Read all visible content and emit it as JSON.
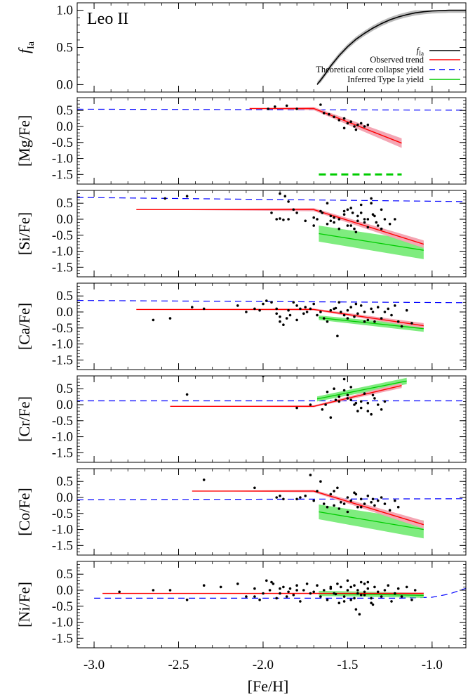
{
  "chart_data": {
    "type": "line",
    "title": "Leo II",
    "xlabel": "[Fe/H]",
    "xlim": [
      -3.1,
      -0.8
    ],
    "x_ticks": [
      "-3.0",
      "-2.5",
      "-2.0",
      "-1.5",
      "-1.0"
    ],
    "x_tick_values": [
      -3.0,
      -2.5,
      -2.0,
      -1.5,
      -1.0
    ],
    "legend": {
      "placement": "right, inside top panel",
      "entries": [
        {
          "label": "f_Ia",
          "color": "#000000",
          "style": "solid"
        },
        {
          "label": "Observed trend",
          "color": "#ff0000",
          "style": "solid"
        },
        {
          "label": "Theoretical core collapse yield",
          "color": "#0000ff",
          "style": "dashed"
        },
        {
          "label": "Inferred Type Ia yield",
          "color": "#00cc00",
          "style": "solid"
        }
      ]
    },
    "colors": {
      "fia": "#000000",
      "observed": "#ff0000",
      "observed_band": "#f4a6b4",
      "cc_yield": "#0000ff",
      "ia_yield": "#00cc00",
      "ia_band": "#7fec7f",
      "fia_band": "#bbbbbb"
    },
    "panels": [
      {
        "id": "fia",
        "ylabel_main": "f",
        "ylabel_sub": "Ia",
        "ylim": [
          -0.1,
          1.1
        ],
        "y_ticks": [
          "0.0",
          "0.5",
          "1.0"
        ],
        "y_tick_values": [
          0.0,
          0.5,
          1.0
        ],
        "fia_curve": {
          "x": [
            -1.68,
            -1.66,
            -1.63,
            -1.6,
            -1.55,
            -1.5,
            -1.45,
            -1.4,
            -1.35,
            -1.3,
            -1.25,
            -1.2,
            -1.15,
            -1.1,
            -1.05,
            -1.0,
            -0.95,
            -0.9,
            -0.85,
            -0.8
          ],
          "y": [
            0.0,
            0.06,
            0.15,
            0.25,
            0.39,
            0.51,
            0.61,
            0.69,
            0.76,
            0.82,
            0.87,
            0.91,
            0.94,
            0.965,
            0.98,
            0.99,
            0.995,
            1.0,
            1.0,
            1.0
          ],
          "band": 0.035
        }
      },
      {
        "id": "mg",
        "ylabel_main": "[Mg/Fe]",
        "ylim": [
          -1.8,
          0.9
        ],
        "y_ticks": [
          "0.5",
          "0.0",
          "-0.5",
          "-1.0",
          "-1.5"
        ],
        "y_tick_values": [
          0.5,
          0.0,
          -0.5,
          -1.0,
          -1.5
        ],
        "cc_yield": {
          "x": [
            -3.1,
            -0.8
          ],
          "y": [
            0.54,
            0.51
          ]
        },
        "observed": {
          "x": [
            -2.08,
            -1.7,
            -1.18
          ],
          "y": [
            0.56,
            0.56,
            -0.52
          ],
          "band": [
            0.0,
            0.05,
            0.15
          ]
        },
        "ia_yield": {
          "x": [
            -1.67,
            -1.18
          ],
          "y": [
            -1.5,
            -1.5
          ],
          "style": "dashed-thick"
        },
        "points": {
          "x": [
            -1.97,
            -1.93,
            -1.86,
            -1.8,
            -1.66,
            -1.64,
            -1.61,
            -1.58,
            -1.55,
            -1.52,
            -1.5,
            -1.48,
            -1.46,
            -1.44,
            -1.42,
            -1.4,
            -1.38,
            -1.52,
            -1.45
          ],
          "y": [
            0.55,
            0.62,
            0.65,
            0.55,
            0.68,
            0.42,
            0.38,
            0.3,
            0.2,
            0.25,
            0.1,
            0.15,
            0.0,
            0.05,
            0.1,
            0.0,
            0.05,
            -0.05,
            -0.1
          ]
        }
      },
      {
        "id": "si",
        "ylabel_main": "[Si/Fe]",
        "ylim": [
          -1.8,
          0.9
        ],
        "y_ticks": [
          "0.5",
          "0.0",
          "-0.5",
          "-1.0",
          "-1.5"
        ],
        "y_tick_values": [
          0.5,
          0.0,
          -0.5,
          -1.0,
          -1.5
        ],
        "cc_yield": {
          "x": [
            -3.1,
            -0.8
          ],
          "y": [
            0.68,
            0.55
          ]
        },
        "observed": {
          "x": [
            -2.75,
            -1.7,
            -1.05
          ],
          "y": [
            0.3,
            0.3,
            -0.78
          ],
          "band": [
            0.0,
            0.05,
            0.12
          ]
        },
        "ia_yield": {
          "x": [
            -1.67,
            -1.05
          ],
          "y": [
            -0.45,
            -0.97
          ],
          "band_lo": [
            -0.7,
            -1.25
          ],
          "band_hi": [
            -0.2,
            -0.69
          ]
        },
        "points": {
          "x": [
            -2.58,
            -2.45,
            -1.9,
            -1.87,
            -1.85,
            -1.82,
            -1.8,
            -1.92,
            -1.9,
            -1.88,
            -1.85,
            -1.95,
            -1.75,
            -1.7,
            -1.68,
            -1.65,
            -1.62,
            -1.6,
            -1.58,
            -1.55,
            -1.52,
            -1.5,
            -1.48,
            -1.46,
            -1.44,
            -1.42,
            -1.4,
            -1.38,
            -1.36,
            -1.34,
            -1.32,
            -1.3,
            -1.28,
            -1.25,
            -1.22,
            -1.6,
            -1.55,
            -1.5,
            -1.45,
            -1.4,
            -1.35,
            -1.3,
            -1.48,
            -1.42,
            -1.38,
            -1.52,
            -1.58,
            -1.62,
            -1.66,
            -1.7,
            -1.36,
            -1.33,
            -1.44,
            -1.47
          ],
          "y": [
            0.65,
            0.72,
            0.8,
            0.72,
            0.55,
            0.3,
            0.2,
            0.0,
            0.02,
            -0.02,
            0.0,
            0.2,
            -0.05,
            -0.2,
            0.0,
            0.2,
            0.5,
            0.1,
            -0.1,
            0.0,
            0.25,
            0.3,
            -0.2,
            -0.3,
            0.1,
            0.2,
            -0.1,
            0.0,
            0.5,
            0.1,
            -0.2,
            0.3,
            0.0,
            -0.15,
            0.0,
            -0.05,
            -0.3,
            -0.2,
            -0.4,
            0.0,
            0.15,
            -0.3,
            0.35,
            0.45,
            -0.25,
            0.15,
            0.05,
            -0.15,
            0.25,
            0.05,
            0.65,
            -0.1,
            -0.05,
            0.2
          ]
        }
      },
      {
        "id": "ca",
        "ylabel_main": "[Ca/Fe]",
        "ylim": [
          -1.8,
          0.9
        ],
        "y_ticks": [
          "0.5",
          "0.0",
          "-0.5",
          "-1.0",
          "-1.5"
        ],
        "y_tick_values": [
          0.5,
          0.0,
          -0.5,
          -1.0,
          -1.5
        ],
        "cc_yield": {
          "x": [
            -3.1,
            -0.8
          ],
          "y": [
            0.36,
            0.29
          ]
        },
        "observed": {
          "x": [
            -2.75,
            -1.7,
            -1.05
          ],
          "y": [
            0.08,
            0.08,
            -0.43
          ],
          "band": [
            0.0,
            0.03,
            0.08
          ]
        },
        "ia_yield": {
          "x": [
            -1.67,
            -1.05
          ],
          "y": [
            -0.18,
            -0.52
          ],
          "band_lo": [
            -0.25,
            -0.62
          ],
          "band_hi": [
            -0.11,
            -0.42
          ]
        },
        "points": {
          "x": [
            -2.65,
            -2.55,
            -2.42,
            -2.35,
            -2.15,
            -2.1,
            -2.05,
            -2.02,
            -2.0,
            -1.98,
            -1.95,
            -1.92,
            -1.9,
            -1.88,
            -1.86,
            -1.84,
            -1.82,
            -1.8,
            -1.78,
            -1.76,
            -1.74,
            -1.72,
            -1.7,
            -1.68,
            -1.66,
            -1.64,
            -1.62,
            -1.6,
            -1.58,
            -1.56,
            -1.54,
            -1.52,
            -1.5,
            -1.48,
            -1.46,
            -1.44,
            -1.42,
            -1.4,
            -1.38,
            -1.36,
            -1.34,
            -1.32,
            -1.3,
            -1.28,
            -1.26,
            -1.24,
            -1.22,
            -1.2,
            -1.18,
            -1.15,
            -1.12,
            -1.9,
            -1.85,
            -1.8,
            -1.75,
            -1.55,
            -1.5,
            -1.45,
            -1.4,
            -1.35,
            -1.57,
            -1.92
          ],
          "y": [
            -0.25,
            -0.2,
            0.15,
            0.1,
            0.2,
            0.0,
            0.1,
            0.05,
            0.25,
            0.35,
            0.3,
            0.1,
            -0.3,
            -0.4,
            -0.2,
            -0.1,
            0.3,
            0.2,
            0.1,
            -0.05,
            0.0,
            0.1,
            0.25,
            -0.1,
            0.0,
            -0.2,
            -0.3,
            0.05,
            0.1,
            -0.75,
            0.0,
            -0.1,
            0.05,
            0.15,
            -0.15,
            -0.05,
            0.2,
            0.0,
            -0.25,
            0.1,
            -0.3,
            0.15,
            -0.2,
            0.0,
            0.1,
            -0.1,
            0.2,
            -0.3,
            -0.45,
            0.05,
            -0.35,
            -0.15,
            0.05,
            -0.25,
            0.15,
            0.3,
            -0.2,
            0.25,
            -0.3,
            0.0,
            0.12,
            -0.05
          ]
        }
      },
      {
        "id": "cr",
        "ylabel_main": "[Cr/Fe]",
        "ylim": [
          -1.8,
          0.9
        ],
        "y_ticks": [
          "0.5",
          "0.0",
          "-0.5",
          "-1.0",
          "-1.5"
        ],
        "y_tick_values": [
          0.5,
          0.0,
          -0.5,
          -1.0,
          -1.5
        ],
        "cc_yield": {
          "x": [
            -3.1,
            -0.8
          ],
          "y": [
            0.12,
            0.12
          ]
        },
        "observed": {
          "x": [
            -2.55,
            -1.7,
            -1.18
          ],
          "y": [
            -0.05,
            -0.05,
            0.6
          ],
          "band": [
            0.0,
            0.03,
            0.08
          ]
        },
        "ia_yield": {
          "x": [
            -1.68,
            -1.15
          ],
          "y": [
            0.18,
            0.74
          ],
          "band_lo": [
            0.1,
            0.64
          ],
          "band_hi": [
            0.26,
            0.84
          ]
        },
        "points": {
          "x": [
            -2.45,
            -2.0,
            -1.8,
            -1.72,
            -1.65,
            -1.62,
            -1.58,
            -1.55,
            -1.52,
            -1.5,
            -1.48,
            -1.46,
            -1.44,
            -1.42,
            -1.4,
            -1.38,
            -1.36,
            -1.34,
            -1.32,
            -1.3,
            -1.28,
            -1.6,
            -1.55,
            -1.5,
            -1.45,
            -1.42,
            -1.38,
            -1.35,
            -1.52,
            -1.48,
            -1.63,
            -1.57
          ],
          "y": [
            0.32,
            0.9,
            -0.1,
            0.0,
            -0.15,
            0.4,
            0.5,
            0.25,
            0.8,
            0.3,
            0.15,
            0.0,
            -0.2,
            0.1,
            0.35,
            0.05,
            -0.3,
            0.2,
            0.0,
            -0.15,
            0.1,
            -0.4,
            0.1,
            0.2,
            0.05,
            -0.1,
            -0.2,
            0.3,
            0.45,
            0.55,
            0.0,
            0.15
          ]
        }
      },
      {
        "id": "co",
        "ylabel_main": "[Co/Fe]",
        "ylim": [
          -1.8,
          0.9
        ],
        "y_ticks": [
          "0.5",
          "0.0",
          "-0.5",
          "-1.0",
          "-1.5"
        ],
        "y_tick_values": [
          0.5,
          0.0,
          -0.5,
          -1.0,
          -1.5
        ],
        "cc_yield": {
          "x": [
            -3.1,
            -0.8
          ],
          "y": [
            -0.07,
            -0.04
          ]
        },
        "observed": {
          "x": [
            -2.42,
            -1.7,
            -1.05
          ],
          "y": [
            0.2,
            0.2,
            -0.85
          ],
          "band": [
            0.0,
            0.04,
            0.12
          ]
        },
        "ia_yield": {
          "x": [
            -1.67,
            -1.05
          ],
          "y": [
            -0.45,
            -1.0
          ],
          "band_lo": [
            -0.68,
            -1.28
          ],
          "band_hi": [
            -0.22,
            -0.72
          ]
        },
        "points": {
          "x": [
            -2.35,
            -2.05,
            -1.92,
            -1.9,
            -1.88,
            -1.8,
            -1.78,
            -1.72,
            -1.7,
            -1.68,
            -1.66,
            -1.64,
            -1.62,
            -1.6,
            -1.58,
            -1.56,
            -1.54,
            -1.52,
            -1.5,
            -1.48,
            -1.46,
            -1.44,
            -1.42,
            -1.4,
            -1.38,
            -1.36,
            -1.34,
            -1.32,
            -1.3,
            -1.28,
            -1.25,
            -1.22,
            -1.2,
            -1.55,
            -1.45,
            -1.35,
            -1.5,
            -1.75,
            -1.58,
            -1.42
          ],
          "y": [
            0.55,
            0.3,
            0.0,
            0.05,
            -0.05,
            -0.05,
            0.0,
            0.7,
            -0.1,
            0.2,
            0.5,
            -0.2,
            -0.3,
            0.1,
            0.2,
            0.3,
            -0.15,
            -0.2,
            0.0,
            -0.1,
            0.15,
            -0.3,
            -0.05,
            -0.2,
            0.05,
            -0.15,
            -0.25,
            -0.1,
            0.0,
            -0.2,
            -0.4,
            -0.1,
            -0.3,
            -0.35,
            0.1,
            -0.05,
            -0.45,
            0.05,
            -0.25,
            -0.3
          ]
        }
      },
      {
        "id": "ni",
        "ylabel_main": "[Ni/Fe]",
        "ylim": [
          -1.8,
          0.9
        ],
        "y_ticks": [
          "0.5",
          "0.0",
          "-0.5",
          "-1.0",
          "-1.5"
        ],
        "y_tick_values": [
          0.5,
          0.0,
          -0.5,
          -1.0,
          -1.5
        ],
        "cc_yield": {
          "x": [
            -3.0,
            -1.2,
            -1.0,
            -0.9,
            -0.8
          ],
          "y": [
            -0.25,
            -0.25,
            -0.22,
            -0.12,
            0.06
          ]
        },
        "observed": {
          "x": [
            -2.95,
            -1.05
          ],
          "y": [
            -0.1,
            -0.1
          ],
          "band": [
            0.0,
            0.03
          ]
        },
        "ia_yield": {
          "x": [
            -1.67,
            -1.05
          ],
          "y": [
            -0.1,
            -0.16
          ],
          "band_lo": [
            -0.18,
            -0.24
          ],
          "band_hi": [
            -0.02,
            -0.08
          ]
        },
        "points": {
          "x": [
            -2.85,
            -2.65,
            -2.55,
            -2.45,
            -2.35,
            -2.25,
            -2.15,
            -2.1,
            -2.05,
            -2.02,
            -2.0,
            -1.98,
            -1.96,
            -1.94,
            -1.92,
            -1.9,
            -1.88,
            -1.86,
            -1.84,
            -1.82,
            -1.8,
            -1.78,
            -1.76,
            -1.74,
            -1.72,
            -1.7,
            -1.68,
            -1.66,
            -1.64,
            -1.62,
            -1.6,
            -1.58,
            -1.56,
            -1.54,
            -1.52,
            -1.5,
            -1.48,
            -1.46,
            -1.44,
            -1.42,
            -1.4,
            -1.38,
            -1.36,
            -1.34,
            -1.32,
            -1.3,
            -1.28,
            -1.26,
            -1.24,
            -1.22,
            -1.2,
            -1.18,
            -1.15,
            -1.12,
            -1.1,
            -1.55,
            -1.5,
            -1.45,
            -1.4,
            -1.35,
            -1.48,
            -1.42,
            -1.38,
            -1.52,
            -1.46,
            -1.44,
            -1.4,
            -1.36,
            -1.9,
            -1.8,
            -2.05,
            -1.95,
            -1.85,
            -1.6,
            -1.57,
            -1.43
          ],
          "y": [
            -0.05,
            0.0,
            0.0,
            -0.3,
            0.15,
            0.1,
            0.2,
            -0.2,
            0.05,
            -0.3,
            -0.1,
            0.3,
            0.0,
            0.2,
            -0.25,
            -0.1,
            0.1,
            -0.2,
            0.05,
            -0.15,
            0.15,
            -0.35,
            0.0,
            0.2,
            -0.1,
            -0.05,
            0.15,
            -0.2,
            0.0,
            -0.3,
            0.05,
            -0.1,
            0.2,
            0.1,
            -0.2,
            0.0,
            -0.3,
            0.15,
            -0.1,
            0.25,
            -0.15,
            0.05,
            -0.25,
            0.1,
            -0.05,
            -0.2,
            0.0,
            0.15,
            -0.35,
            -0.1,
            0.05,
            -0.2,
            0.1,
            -0.3,
            0.0,
            -0.4,
            0.3,
            -0.6,
            0.2,
            -0.45,
            0.1,
            -0.15,
            0.25,
            -0.35,
            -0.25,
            0.0,
            -0.05,
            -0.4,
            0.05,
            0.0,
            -0.2,
            0.25,
            -0.05,
            0.1,
            -0.12,
            -0.75
          ]
        }
      }
    ]
  }
}
